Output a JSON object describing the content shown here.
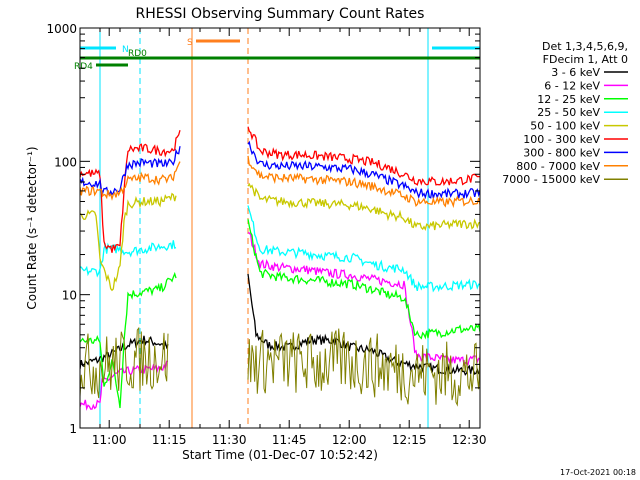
{
  "chart_data": {
    "type": "line",
    "title": "RHESSI Observing Summary Count Rates",
    "xlabel": "Start Time (01-Dec-07 10:52:42)",
    "ylabel": "Count Rate (s⁻¹ detector⁻¹)",
    "x_range_minutes_after_start": [
      0,
      100
    ],
    "y_scale": "log",
    "ylim": [
      1,
      1000
    ],
    "x_ticks": [
      {
        "label": "11:00",
        "t": 7.3
      },
      {
        "label": "11:15",
        "t": 22.3
      },
      {
        "label": "11:30",
        "t": 37.3
      },
      {
        "label": "11:45",
        "t": 52.3
      },
      {
        "label": "12:00",
        "t": 67.3
      },
      {
        "label": "12:15",
        "t": 82.3
      },
      {
        "label": "12:30",
        "t": 97.3
      }
    ],
    "y_ticks": [
      {
        "label": "1",
        "v": 1
      },
      {
        "label": "10",
        "v": 10
      },
      {
        "label": "100",
        "v": 100
      },
      {
        "label": "1000",
        "v": 1000
      }
    ],
    "legend_header": [
      "Det 1,3,4,5,6,9,",
      "FDecim 1, Att 0"
    ],
    "legend_position": "top-right outside",
    "series": [
      {
        "name": "3 - 6 keV",
        "color": "#000000",
        "points": [
          [
            0,
            3
          ],
          [
            4,
            3.2
          ],
          [
            8,
            3.6
          ],
          [
            12,
            4.2
          ],
          [
            16,
            4.6
          ],
          [
            20,
            4.3
          ],
          [
            22,
            4.0
          ],
          [
            28,
            null
          ],
          [
            42,
            null
          ],
          [
            42,
            14
          ],
          [
            44,
            5
          ],
          [
            47,
            4.2
          ],
          [
            52,
            4.0
          ],
          [
            58,
            4.6
          ],
          [
            64,
            4.5
          ],
          [
            68,
            4.0
          ],
          [
            73,
            3.8
          ],
          [
            78,
            3.2
          ],
          [
            82,
            3.0
          ],
          [
            88,
            2.8
          ],
          [
            94,
            2.7
          ],
          [
            100,
            2.7
          ]
        ]
      },
      {
        "name": "6 - 12 keV",
        "color": "#ff00ff",
        "points": [
          [
            0,
            1.5
          ],
          [
            5,
            1.5
          ],
          [
            5.5,
            2.2
          ],
          [
            10,
            2.6
          ],
          [
            14,
            2.7
          ],
          [
            20,
            2.8
          ],
          [
            22,
            3.0
          ],
          [
            28,
            null
          ],
          [
            42,
            null
          ],
          [
            42,
            30
          ],
          [
            45,
            17
          ],
          [
            50,
            16
          ],
          [
            56,
            15.5
          ],
          [
            62,
            14.5
          ],
          [
            68,
            14
          ],
          [
            73,
            13
          ],
          [
            77,
            12.5
          ],
          [
            81,
            12
          ],
          [
            84,
            3.5
          ],
          [
            90,
            3.3
          ],
          [
            95,
            3.2
          ],
          [
            100,
            3.3
          ]
        ]
      },
      {
        "name": "12 - 25 keV",
        "color": "#00ff00",
        "points": [
          [
            0,
            4.5
          ],
          [
            5,
            4.5
          ],
          [
            6,
            2.0
          ],
          [
            8,
            3.2
          ],
          [
            10,
            1.5
          ],
          [
            11,
            4.5
          ],
          [
            12,
            10
          ],
          [
            16,
            10.5
          ],
          [
            20,
            11
          ],
          [
            24,
            14
          ],
          [
            28,
            null
          ],
          [
            42,
            null
          ],
          [
            42,
            35
          ],
          [
            45,
            14.5
          ],
          [
            50,
            13.5
          ],
          [
            56,
            13
          ],
          [
            62,
            12.5
          ],
          [
            68,
            12
          ],
          [
            73,
            11
          ],
          [
            77,
            10
          ],
          [
            81,
            9.5
          ],
          [
            84,
            5
          ],
          [
            90,
            5.2
          ],
          [
            95,
            5.5
          ],
          [
            100,
            5.5
          ]
        ]
      },
      {
        "name": "25 - 50 keV",
        "color": "#00ffff",
        "points": [
          [
            0,
            15
          ],
          [
            5,
            15
          ],
          [
            6,
            22
          ],
          [
            10,
            22
          ],
          [
            12,
            21
          ],
          [
            16,
            22
          ],
          [
            20,
            23
          ],
          [
            24,
            24
          ],
          [
            28,
            null
          ],
          [
            42,
            null
          ],
          [
            42,
            45
          ],
          [
            45,
            22
          ],
          [
            50,
            21
          ],
          [
            56,
            20.5
          ],
          [
            62,
            19.5
          ],
          [
            68,
            19
          ],
          [
            73,
            17
          ],
          [
            77,
            16
          ],
          [
            81,
            15.5
          ],
          [
            84,
            11.5
          ],
          [
            90,
            11.5
          ],
          [
            95,
            11.8
          ],
          [
            100,
            12
          ]
        ]
      },
      {
        "name": "50 - 100 keV",
        "color": "#c8c800",
        "points": [
          [
            0,
            39
          ],
          [
            4,
            40
          ],
          [
            5,
            18
          ],
          [
            8,
            11
          ],
          [
            10,
            16
          ],
          [
            11,
            35
          ],
          [
            12,
            48
          ],
          [
            16,
            50
          ],
          [
            20,
            50
          ],
          [
            24,
            55
          ],
          [
            28,
            null
          ],
          [
            42,
            null
          ],
          [
            42,
            70
          ],
          [
            45,
            52
          ],
          [
            50,
            50
          ],
          [
            56,
            49
          ],
          [
            62,
            48
          ],
          [
            68,
            47
          ],
          [
            73,
            44
          ],
          [
            77,
            40
          ],
          [
            81,
            38
          ],
          [
            84,
            32
          ],
          [
            90,
            33
          ],
          [
            95,
            34
          ],
          [
            100,
            34
          ]
        ]
      },
      {
        "name": "100 - 300 keV",
        "color": "#ff0000",
        "points": [
          [
            0,
            82
          ],
          [
            5,
            80
          ],
          [
            6,
            24
          ],
          [
            8,
            22
          ],
          [
            10,
            23
          ],
          [
            11,
            60
          ],
          [
            12,
            123
          ],
          [
            16,
            125
          ],
          [
            20,
            120
          ],
          [
            23,
            120
          ],
          [
            25,
            160
          ],
          [
            28,
            null
          ],
          [
            42,
            null
          ],
          [
            42,
            185
          ],
          [
            45,
            120
          ],
          [
            50,
            112
          ],
          [
            56,
            112
          ],
          [
            62,
            108
          ],
          [
            68,
            104
          ],
          [
            73,
            98
          ],
          [
            77,
            90
          ],
          [
            81,
            80
          ],
          [
            84,
            72
          ],
          [
            90,
            70
          ],
          [
            95,
            72
          ],
          [
            100,
            75
          ]
        ]
      },
      {
        "name": "300 - 800 keV",
        "color": "#0000ff",
        "points": [
          [
            0,
            70
          ],
          [
            5,
            68
          ],
          [
            6,
            58
          ],
          [
            8,
            60
          ],
          [
            10,
            62
          ],
          [
            11,
            80
          ],
          [
            12,
            95
          ],
          [
            16,
            98
          ],
          [
            20,
            95
          ],
          [
            23,
            96
          ],
          [
            25,
            130
          ],
          [
            28,
            null
          ],
          [
            42,
            null
          ],
          [
            42,
            140
          ],
          [
            45,
            95
          ],
          [
            50,
            92
          ],
          [
            56,
            92
          ],
          [
            62,
            90
          ],
          [
            68,
            87
          ],
          [
            73,
            80
          ],
          [
            77,
            72
          ],
          [
            81,
            65
          ],
          [
            84,
            58
          ],
          [
            90,
            57
          ],
          [
            95,
            57
          ],
          [
            100,
            58
          ]
        ]
      },
      {
        "name": "800 - 7000 keV",
        "color": "#ff8000",
        "points": [
          [
            0,
            60
          ],
          [
            5,
            60
          ],
          [
            6,
            57
          ],
          [
            8,
            56
          ],
          [
            10,
            58
          ],
          [
            11,
            65
          ],
          [
            12,
            72
          ],
          [
            16,
            76
          ],
          [
            20,
            73
          ],
          [
            23,
            74
          ],
          [
            25,
            100
          ],
          [
            28,
            null
          ],
          [
            42,
            null
          ],
          [
            42,
            105
          ],
          [
            45,
            78
          ],
          [
            50,
            75
          ],
          [
            56,
            74
          ],
          [
            62,
            72
          ],
          [
            68,
            70
          ],
          [
            73,
            65
          ],
          [
            77,
            60
          ],
          [
            81,
            55
          ],
          [
            84,
            50
          ],
          [
            90,
            49
          ],
          [
            95,
            50
          ],
          [
            100,
            51
          ]
        ]
      },
      {
        "name": "7000 - 15000 keV",
        "color": "#808000",
        "points": [
          [
            0,
            3.0
          ],
          [
            4,
            2.9
          ],
          [
            8,
            3.0
          ],
          [
            12,
            3.2
          ],
          [
            16,
            3.3
          ],
          [
            20,
            3.4
          ],
          [
            22,
            3.4
          ],
          [
            28,
            null
          ],
          [
            42,
            null
          ],
          [
            42,
            3.1
          ],
          [
            48,
            3.2
          ],
          [
            54,
            3.1
          ],
          [
            60,
            3.0
          ],
          [
            66,
            3.2
          ],
          [
            72,
            3.0
          ],
          [
            78,
            2.8
          ],
          [
            84,
            2.6
          ],
          [
            90,
            2.6
          ],
          [
            95,
            2.5
          ],
          [
            100,
            2.5
          ]
        ]
      }
    ],
    "state_bars": [
      {
        "label": "N",
        "color": "#00e5ff",
        "segments": [
          [
            0,
            9
          ],
          [
            88,
            100
          ]
        ],
        "level": 740
      },
      {
        "label": "S",
        "color": "#ff7f1e",
        "segments": [
          [
            29,
            40
          ]
        ],
        "level": 880
      },
      {
        "label": "RD0",
        "color": "#008000",
        "segments": [
          [
            0,
            100
          ]
        ],
        "level": 580
      },
      {
        "label": "RD4",
        "color": "#008000",
        "segments": [
          [
            4,
            12
          ]
        ],
        "level": 470
      }
    ],
    "vlines": [
      {
        "t": 5,
        "color": "#00e5ff",
        "style": "solid"
      },
      {
        "t": 15,
        "color": "#00e5ff",
        "style": "dashed"
      },
      {
        "t": 28,
        "color": "#ff7f1e",
        "style": "solid"
      },
      {
        "t": 42,
        "color": "#ff7f1e",
        "style": "dashed"
      },
      {
        "t": 87,
        "color": "#00e5ff",
        "style": "solid"
      },
      {
        "t": 100,
        "color": "#00e5ff",
        "style": "dashed"
      }
    ],
    "timestamp": "17-Oct-2021 00:18"
  }
}
